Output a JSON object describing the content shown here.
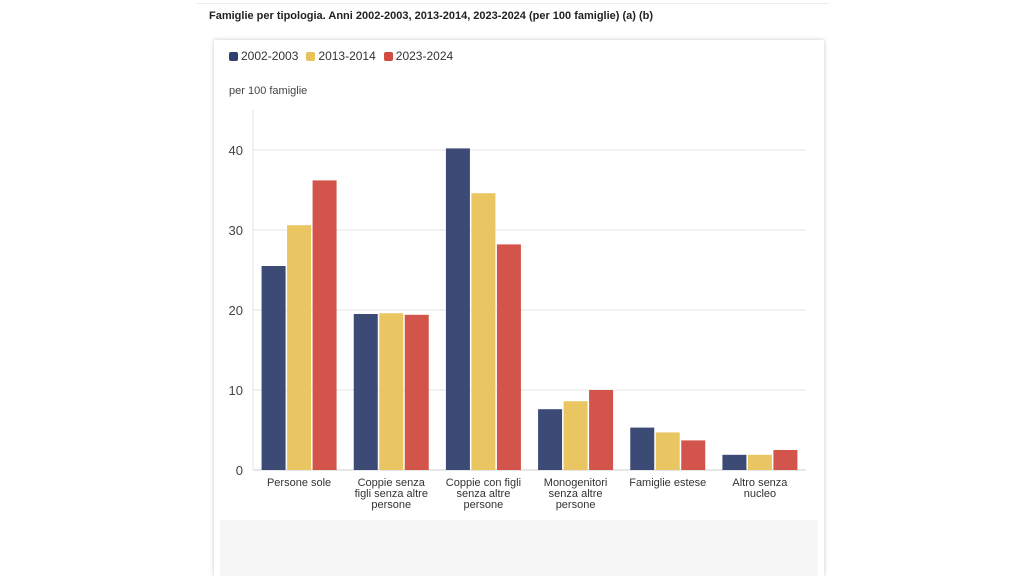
{
  "page": {
    "title": "Famiglie per tipologia. Anni 2002-2003, 2013-2014, 2023-2024 (per 100 famiglie) (a) (b)"
  },
  "colors": {
    "series_1": "#31406f",
    "series_2": "#e9c35a",
    "series_3": "#d14b40",
    "grid": "#e4e4e4",
    "axis_text": "#444444"
  },
  "chart_data": {
    "type": "bar",
    "title": "Famiglie per tipologia. Anni 2002-2003, 2013-2014, 2023-2024 (per 100 famiglie) (a) (b)",
    "xlabel": "",
    "ylabel": "per 100 famiglie",
    "ylim": [
      0,
      45
    ],
    "yticks": [
      0,
      10,
      20,
      30,
      40
    ],
    "grid": true,
    "legend_position": "top-left",
    "categories": [
      [
        "Persone sole"
      ],
      [
        "Coppie senza",
        "figli senza altre",
        "persone"
      ],
      [
        "Coppie con figli",
        "senza altre",
        "persone"
      ],
      [
        "Monogenitori",
        "senza altre",
        "persone"
      ],
      [
        "Famiglie estese"
      ],
      [
        "Altro senza",
        "nucleo"
      ]
    ],
    "series": [
      {
        "name": "2002-2003",
        "values": [
          25.5,
          19.5,
          40.2,
          7.6,
          5.3,
          1.9
        ]
      },
      {
        "name": "2013-2014",
        "values": [
          30.6,
          19.6,
          34.6,
          8.6,
          4.7,
          1.9
        ]
      },
      {
        "name": "2023-2024",
        "values": [
          36.2,
          19.4,
          28.2,
          10.0,
          3.7,
          2.5
        ]
      }
    ]
  }
}
